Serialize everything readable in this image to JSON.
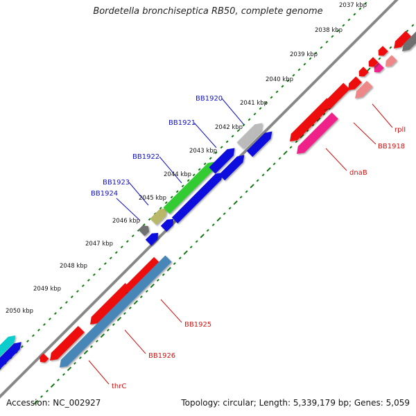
{
  "title": "Bordetella bronchiseptica RB50, complete genome",
  "footer": {
    "accession": "Accession: NC_002927",
    "summary": "Topology: circular; Length: 5,339,179 bp; Genes: 5,059"
  },
  "kbp_ticks": [
    "2037 kbp",
    "2038 kbp",
    "2039 kbp",
    "2040 kbp",
    "2041 kbp",
    "2042 kbp",
    "2043 kbp",
    "2044 kbp",
    "2045 kbp",
    "2046 kbp",
    "2047 kbp",
    "2048 kbp",
    "2049 kbp",
    "2050 kbp"
  ],
  "gene_labels": {
    "plus_strand": [
      "BB1920",
      "BB1921",
      "BB1922",
      "BB1923",
      "BB1924"
    ],
    "minus_strand": [
      "rplI",
      "BB1918",
      "dnaB",
      "BB1925",
      "BB1926",
      "thrC"
    ]
  },
  "colors": {
    "label_plus": "#1010c8",
    "label_minus": "#d01010",
    "red": "#ee1111",
    "blue": "#1111dd",
    "pink": "#ee2288",
    "salmon": "#ee8888",
    "green": "#33cc33",
    "olive": "#b8b868",
    "gray": "#707070",
    "lightgray": "#bbbbbb",
    "steelblue": "#4a86b8",
    "cyan": "#11cccc",
    "backbone": "#808080",
    "tickgreen": "#117711"
  }
}
